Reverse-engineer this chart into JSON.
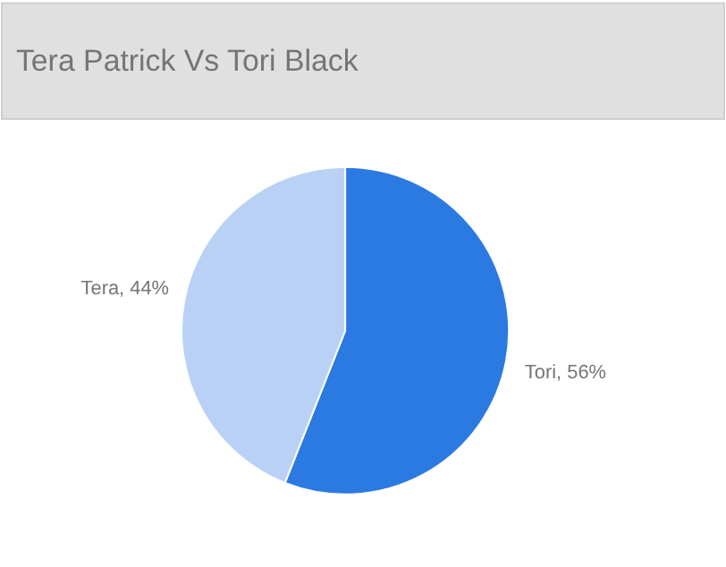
{
  "chart_data": {
    "type": "pie",
    "title": "Tera Patrick Vs Tori Black",
    "categories": [
      "Tori, 56%",
      "Tera, 44%"
    ],
    "values": [
      56,
      44
    ],
    "colors": [
      "#2a7ae2",
      "#b9d1f5"
    ],
    "legend": false
  }
}
